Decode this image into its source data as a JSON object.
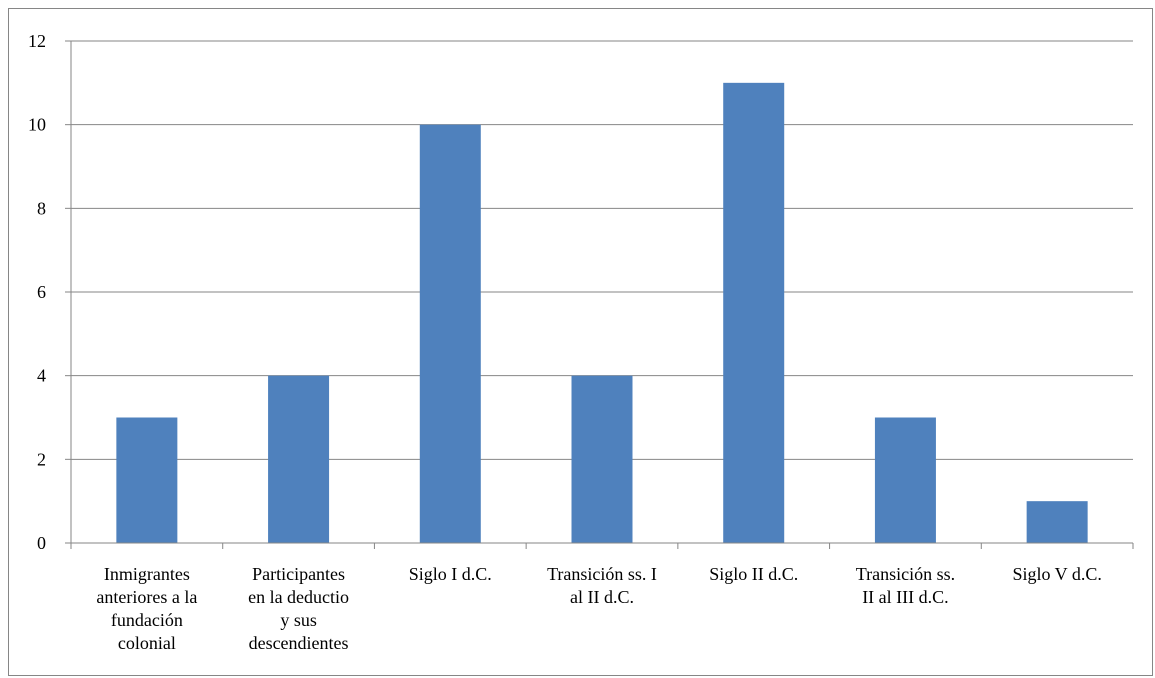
{
  "chart_data": {
    "type": "bar",
    "categories": [
      [
        "Inmigrantes",
        "anteriores a la",
        "fundación",
        "colonial"
      ],
      [
        "Participantes",
        "en la deductio",
        "y sus",
        "descendientes"
      ],
      [
        "Siglo I d.C."
      ],
      [
        "Transición ss. I",
        "al II d.C."
      ],
      [
        "Siglo II d.C."
      ],
      [
        "Transición ss.",
        "II al III d.C."
      ],
      [
        "Siglo V d.C."
      ]
    ],
    "values": [
      3,
      4,
      10,
      4,
      11,
      3,
      1
    ],
    "ylim": [
      0,
      12
    ],
    "yticks": [
      0,
      2,
      4,
      6,
      8,
      10,
      12
    ],
    "grid": true,
    "bar_color": "#4F81BD",
    "grid_color": "#868686"
  }
}
